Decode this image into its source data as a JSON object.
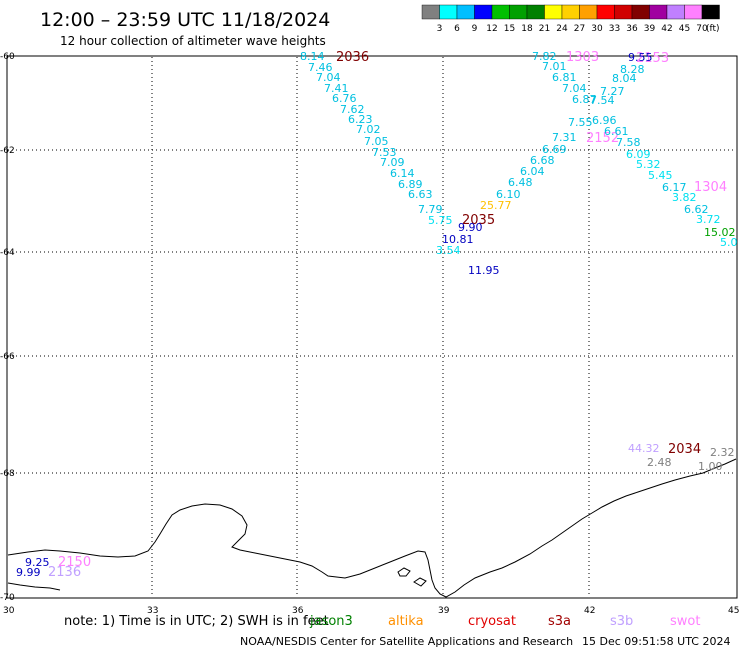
{
  "header": {
    "title": "12:00 – 23:59 UTC 11/18/2024",
    "subtitle": "12 hour collection of altimeter wave heights"
  },
  "color_scale": {
    "ticks": [
      "3",
      "6",
      "9",
      "12",
      "15",
      "18",
      "21",
      "24",
      "27",
      "30",
      "33",
      "36",
      "39",
      "42",
      "45",
      "70"
    ],
    "unit": "(ft)",
    "colors": [
      "#808080",
      "#00ffff",
      "#00bfff",
      "#0000ff",
      "#00c000",
      "#00a000",
      "#008000",
      "#ffff00",
      "#ffd000",
      "#ffa000",
      "#ff0000",
      "#d00000",
      "#800000",
      "#a000a0",
      "#c080ff",
      "#ff80ff",
      "#000000"
    ]
  },
  "axes": {
    "lon_ticks": [
      "30",
      "33",
      "36",
      "39",
      "42",
      "45"
    ],
    "lat_ticks": [
      "-60",
      "-62",
      "-64",
      "-66",
      "-68",
      "-70"
    ]
  },
  "passes": [
    {
      "label": "2036",
      "color": "#800000"
    },
    {
      "label": "1303",
      "color": "#ff80ff"
    },
    {
      "label": "2153",
      "color": "#ff80ff"
    },
    {
      "label": "2152",
      "color": "#ff80ff"
    },
    {
      "label": "1304",
      "color": "#ff80ff"
    },
    {
      "label": "2035",
      "color": "#800000"
    },
    {
      "label": "2034",
      "color": "#800000"
    },
    {
      "label": "2150",
      "color": "#ff80ff"
    },
    {
      "label": "2136",
      "color": "#c0a0ff"
    }
  ],
  "observations": [
    {
      "value": "8.14",
      "color": "#00c0e0"
    },
    {
      "value": "7.46",
      "color": "#00c0e0"
    },
    {
      "value": "7.04",
      "color": "#00c0e0"
    },
    {
      "value": "7.41",
      "color": "#00c0e0"
    },
    {
      "value": "6.76",
      "color": "#00c0e0"
    },
    {
      "value": "7.62",
      "color": "#00c0e0"
    },
    {
      "value": "6.23",
      "color": "#00c0e0"
    },
    {
      "value": "7.02",
      "color": "#00c0e0"
    },
    {
      "value": "7.05",
      "color": "#00c0e0"
    },
    {
      "value": "7.53",
      "color": "#00c0e0"
    },
    {
      "value": "7.09",
      "color": "#00c0e0"
    },
    {
      "value": "6.14",
      "color": "#00c0e0"
    },
    {
      "value": "6.89",
      "color": "#00c0e0"
    },
    {
      "value": "6.63",
      "color": "#00c0e0"
    },
    {
      "value": "7.79",
      "color": "#00c0e0"
    },
    {
      "value": "5.75",
      "color": "#00e0f0"
    },
    {
      "value": "9.90",
      "color": "#0000c0"
    },
    {
      "value": "10.81",
      "color": "#0000c0"
    },
    {
      "value": "3.54",
      "color": "#00e0f0"
    },
    {
      "value": "11.95",
      "color": "#0000c0"
    },
    {
      "value": "25.77",
      "color": "#ffc000"
    },
    {
      "value": "6.10",
      "color": "#00c0e0"
    },
    {
      "value": "6.48",
      "color": "#00c0e0"
    },
    {
      "value": "6.04",
      "color": "#00c0e0"
    },
    {
      "value": "6.68",
      "color": "#00c0e0"
    },
    {
      "value": "6.69",
      "color": "#00c0e0"
    },
    {
      "value": "7.31",
      "color": "#00c0e0"
    },
    {
      "value": "7.55",
      "color": "#00c0e0"
    },
    {
      "value": "6.87",
      "color": "#00c0e0"
    },
    {
      "value": "7.04",
      "color": "#00c0e0"
    },
    {
      "value": "6.81",
      "color": "#00c0e0"
    },
    {
      "value": "7.01",
      "color": "#00c0e0"
    },
    {
      "value": "7.82",
      "color": "#00c0e0"
    },
    {
      "value": "9.55",
      "color": "#0000c0"
    },
    {
      "value": "8.28",
      "color": "#00c0e0"
    },
    {
      "value": "8.04",
      "color": "#00c0e0"
    },
    {
      "value": "7.27",
      "color": "#00c0e0"
    },
    {
      "value": "7.54",
      "color": "#00c0e0"
    },
    {
      "value": "6.96",
      "color": "#00c0e0"
    },
    {
      "value": "6.61",
      "color": "#00c0e0"
    },
    {
      "value": "7.58",
      "color": "#00c0e0"
    },
    {
      "value": "6.09",
      "color": "#00e0f0"
    },
    {
      "value": "5.32",
      "color": "#00e0f0"
    },
    {
      "value": "5.45",
      "color": "#00e0f0"
    },
    {
      "value": "6.17",
      "color": "#00c0e0"
    },
    {
      "value": "3.82",
      "color": "#00e0f0"
    },
    {
      "value": "6.62",
      "color": "#00c0e0"
    },
    {
      "value": "3.72",
      "color": "#00e0f0"
    },
    {
      "value": "15.02",
      "color": "#00a000"
    },
    {
      "value": "5.0",
      "color": "#00e0f0"
    },
    {
      "value": "44.32",
      "color": "#c0a0ff"
    },
    {
      "value": "2.48",
      "color": "#808080"
    },
    {
      "value": "2.32",
      "color": "#808080"
    },
    {
      "value": "1.00",
      "color": "#808080"
    },
    {
      "value": "9.25",
      "color": "#0000c0"
    },
    {
      "value": "9.99",
      "color": "#0000c0"
    }
  ],
  "footer": {
    "note_lead": "note:  1) Time is in UTC; 2) SWH is in feet",
    "satellites": [
      {
        "name": "jason3",
        "color": "#008000"
      },
      {
        "name": "altika",
        "color": "#ff9000"
      },
      {
        "name": "cryosat",
        "color": "#e00000"
      },
      {
        "name": "s3a",
        "color": "#a00000"
      },
      {
        "name": "s3b",
        "color": "#c0a0ff"
      },
      {
        "name": "swot",
        "color": "#ff80ff"
      }
    ],
    "credit": "NOAA/NESDIS Center for Satellite Applications and Research",
    "timestamp": "15 Dec 09:51:58 UTC 2024"
  }
}
